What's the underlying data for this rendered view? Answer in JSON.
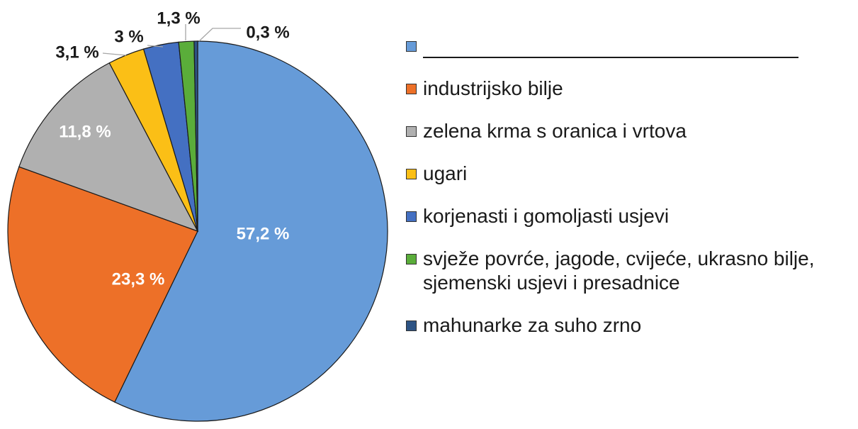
{
  "chart_data": {
    "type": "pie",
    "title": "",
    "categories": [
      "",
      "industrijsko bilje",
      "zelena krma s oranica i vrtova",
      "ugari",
      "korjenasti i gomoljasti usjevi",
      "svježe povrće, jagode, cvijeće, ukrasno bilje, sjemenski usjevi i presadnice",
      "mahunarke za suho zrno"
    ],
    "values": [
      57.2,
      23.3,
      11.8,
      3.1,
      3.0,
      1.3,
      0.3
    ],
    "labels": [
      "57,2 %",
      "23,3 %",
      "11,8 %",
      "3,1 %",
      "3 %",
      "1,3 %",
      "0,3 %"
    ],
    "colors": [
      "#669bd8",
      "#ed7028",
      "#b0b0b0",
      "#fbbf16",
      "#4470c2",
      "#5aad3a",
      "#2d5384"
    ],
    "legend_position": "right"
  },
  "legend": [
    {
      "label": "",
      "blank": true
    },
    {
      "label": "industrijsko bilje"
    },
    {
      "label": "zelena krma s oranica i vrtova"
    },
    {
      "label": "ugari"
    },
    {
      "label": "korjenasti i gomoljasti usjevi"
    },
    {
      "label": "svježe povrće, jagode, cvijeće, ukrasno bilje, sjemenski usjevi i presadnice"
    },
    {
      "label": "mahunarke za suho zrno"
    }
  ]
}
